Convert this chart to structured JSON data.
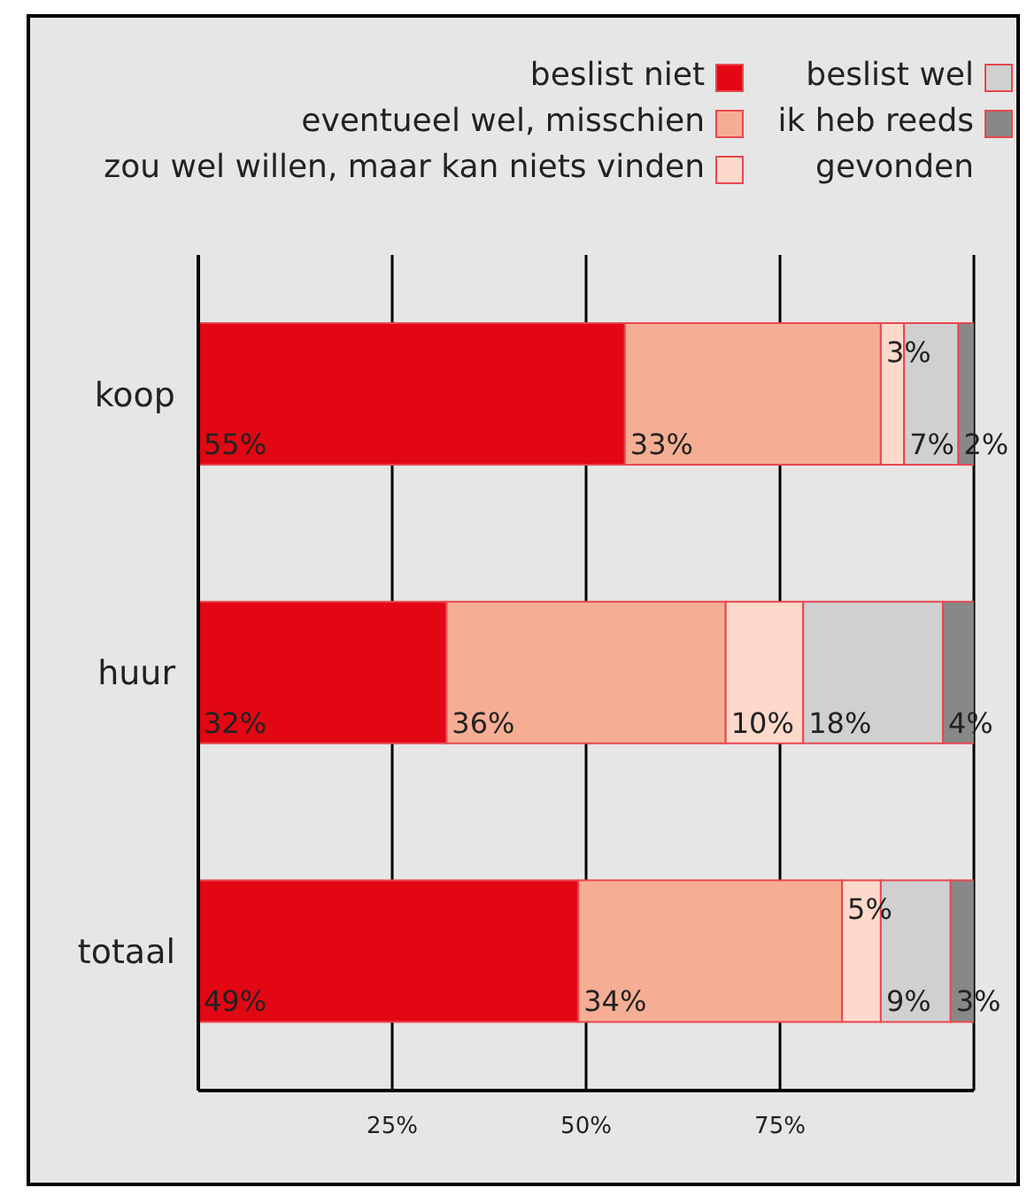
{
  "chart_data": {
    "type": "bar",
    "orientation": "horizontal",
    "stacked": true,
    "categories": [
      "koop",
      "huur",
      "totaal"
    ],
    "series": [
      {
        "name": "beslist niet",
        "color": "#e30613",
        "values": [
          55,
          32,
          49
        ],
        "value_labels": [
          "55%",
          "32%",
          "49%"
        ]
      },
      {
        "name": "eventueel wel, misschien",
        "color": "#f5ae94",
        "values": [
          33,
          36,
          34
        ],
        "value_labels": [
          "33%",
          "36%",
          "34%"
        ]
      },
      {
        "name": "zou wel willen, maar kan niets vinden",
        "color": "#fdd9cb",
        "values": [
          3,
          10,
          5
        ],
        "value_labels": [
          "3%",
          "10%",
          "5%"
        ]
      },
      {
        "name": "beslist wel",
        "color": "#d0d0d0",
        "values": [
          7,
          18,
          9
        ],
        "value_labels": [
          "7%",
          "18%",
          "9%"
        ]
      },
      {
        "name": "ik heb reeds gevonden",
        "color": "#888888",
        "values": [
          2,
          4,
          3
        ],
        "value_labels": [
          "2%",
          "4%",
          "3%"
        ]
      }
    ],
    "xlim": [
      0,
      100
    ],
    "xticks": [
      {
        "value": 25,
        "label": "25%"
      },
      {
        "value": 50,
        "label": "50%"
      },
      {
        "value": 75,
        "label": "75%"
      }
    ],
    "grid": "x",
    "legend": "top right"
  }
}
